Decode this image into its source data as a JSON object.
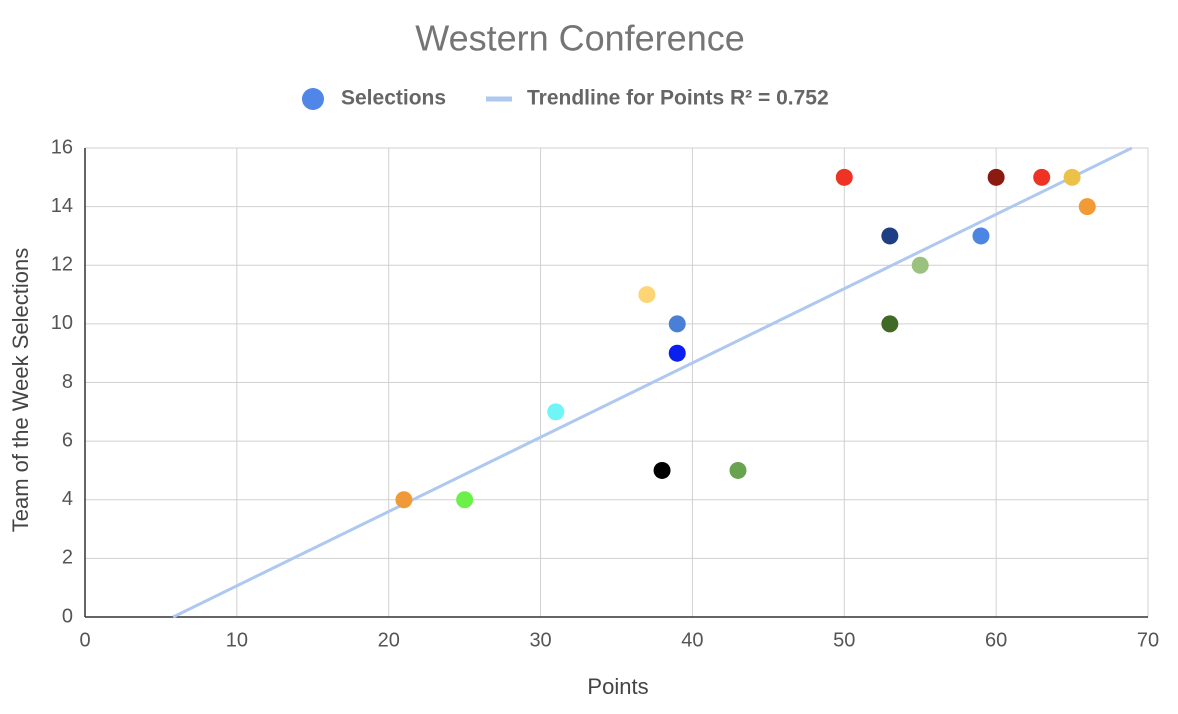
{
  "chart_data": {
    "type": "scatter",
    "title": "Western Conference",
    "x_label": "Points",
    "y_label": "Team of the Week Selections",
    "series": [
      {
        "name": "Selections",
        "color": "#4f86e8",
        "x": [
          21,
          25,
          31,
          37,
          38,
          39,
          39,
          43,
          50,
          53,
          53,
          55,
          59,
          60,
          63,
          65,
          66
        ],
        "values": [
          4,
          4,
          7,
          11,
          5,
          10,
          9,
          5,
          15,
          13,
          10,
          12,
          13,
          15,
          15,
          15,
          14
        ],
        "colors": [
          "#f09a37",
          "#6bf04a",
          "#6ff5f5",
          "#fdd574",
          "#000000",
          "#4a7fd6",
          "#0a1ff0",
          "#6aa34f",
          "#ee3324",
          "#1f3f85",
          "#3f6a26",
          "#9bc17f",
          "#4d85e3",
          "#8b1a10",
          "#ee3324",
          "#ecc14a",
          "#f29a35"
        ]
      }
    ],
    "trendline": {
      "name": "Trendline for Points R² = 0.752",
      "color": "#aec8f0"
    },
    "xlim": [
      0,
      70
    ],
    "xticks": [
      0,
      10,
      20,
      30,
      40,
      50,
      60,
      70
    ],
    "ylim": [
      0,
      16
    ],
    "yticks": [
      0,
      2,
      4,
      6,
      8,
      10,
      12,
      14,
      16
    ],
    "grid": true
  }
}
